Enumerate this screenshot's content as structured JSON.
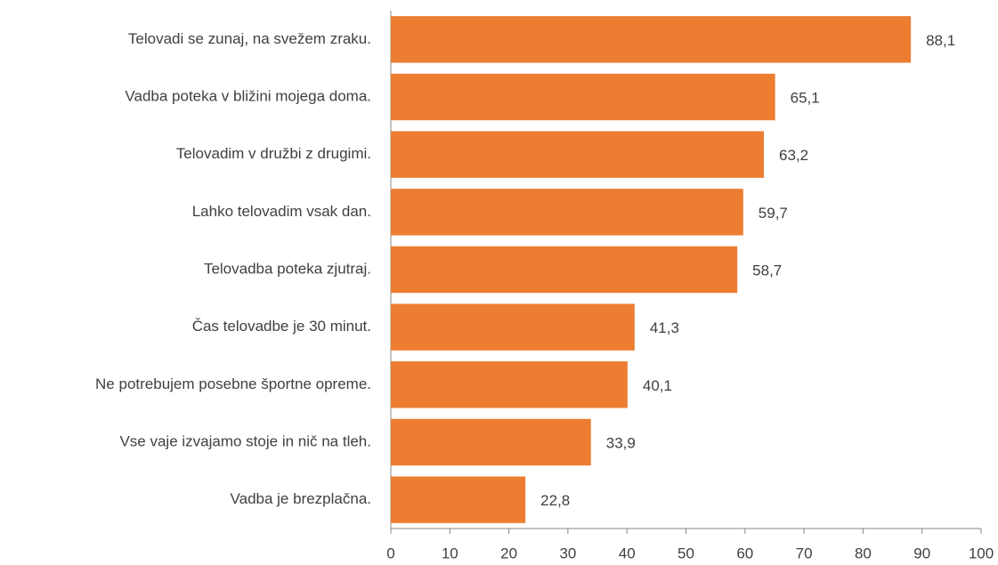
{
  "chart_data": {
    "type": "bar",
    "orientation": "horizontal",
    "categories": [
      "Telovadi se zunaj, na svežem zraku.",
      "Vadba poteka v bližini mojega doma.",
      "Telovadim v družbi z drugimi.",
      "Lahko telovadim vsak dan.",
      "Telovadba poteka zjutraj.",
      "Čas telovadbe je 30 minut.",
      "Ne potrebujem posebne športne opreme.",
      "Vse vaje izvajamo stoje in nič na tleh.",
      "Vadba je brezplačna."
    ],
    "values": [
      88.1,
      65.1,
      63.2,
      59.7,
      58.7,
      41.3,
      40.1,
      33.9,
      22.8
    ],
    "value_labels": [
      "88,1",
      "65,1",
      "63,2",
      "59,7",
      "58,7",
      "41,3",
      "40,1",
      "33,9",
      "22,8"
    ],
    "color": "#ed7d31",
    "xlim": [
      0,
      100
    ],
    "xticks": [
      0,
      10,
      20,
      30,
      40,
      50,
      60,
      70,
      80,
      90,
      100
    ],
    "grid": false
  }
}
